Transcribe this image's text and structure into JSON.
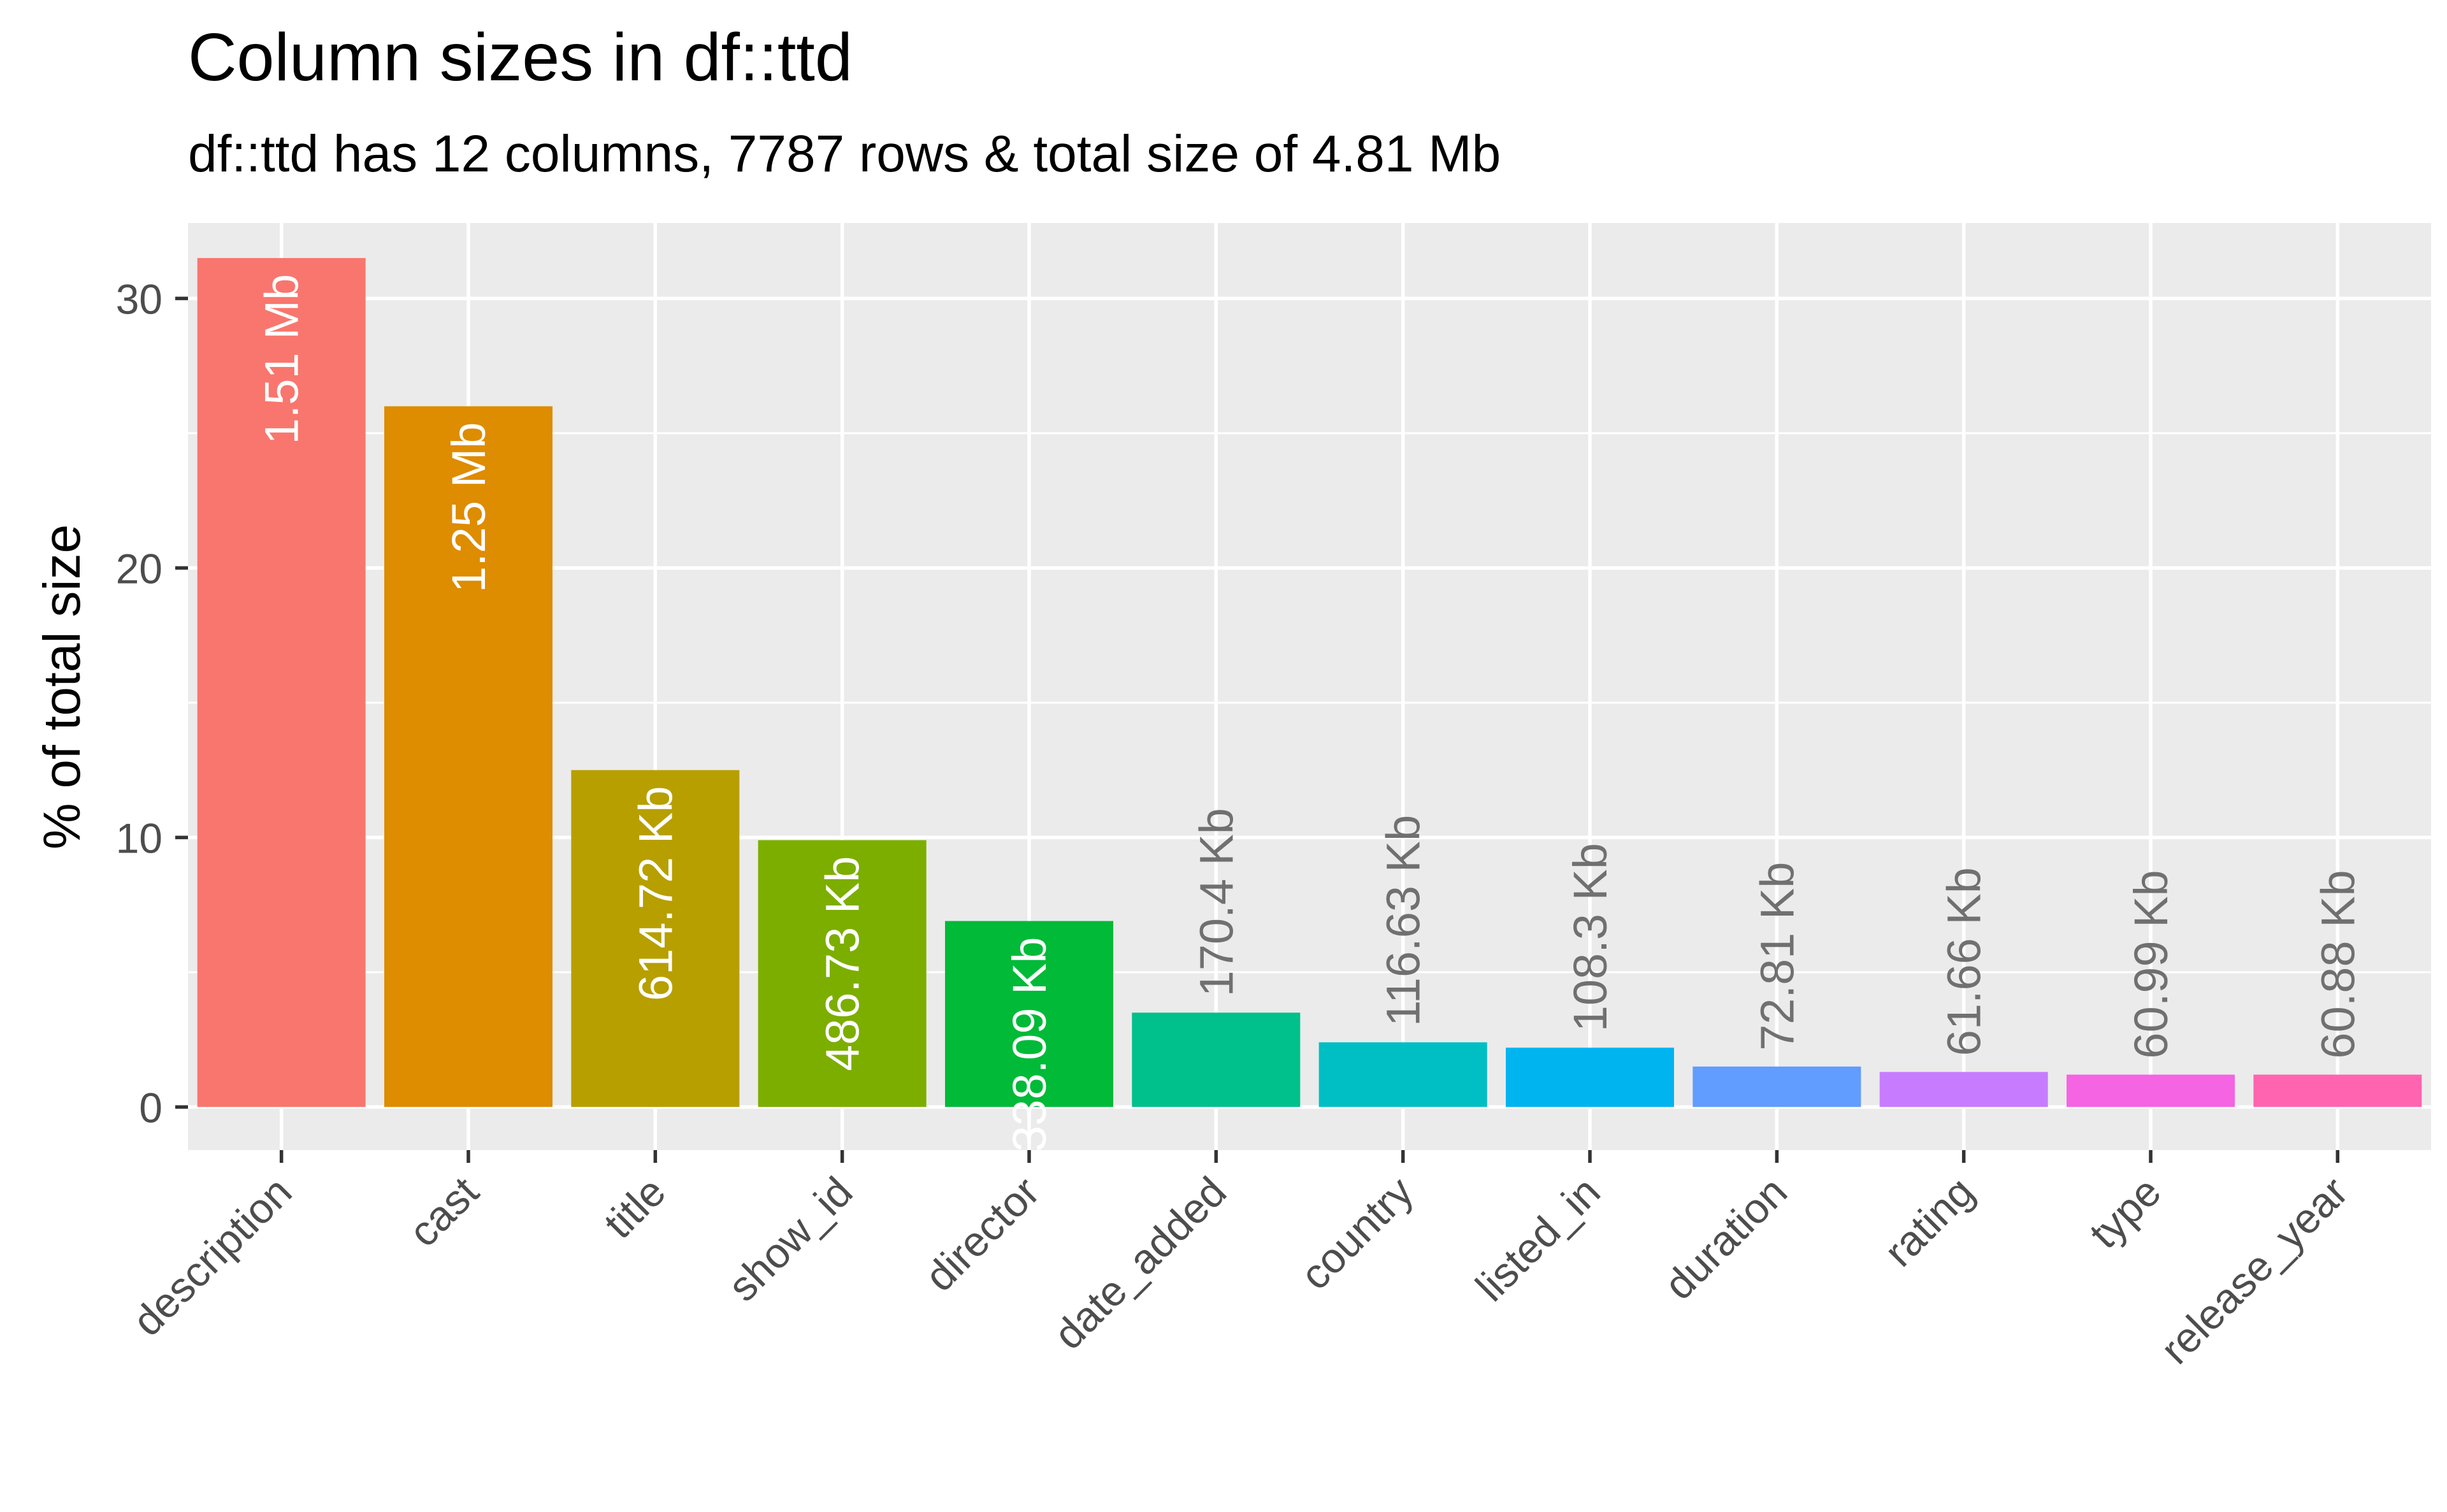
{
  "chart_data": {
    "type": "bar",
    "title": "Column sizes in df::ttd",
    "subtitle": "df::ttd has 12 columns, 7787 rows & total size of 4.81 Mb",
    "xlabel": "",
    "ylabel": "% of total size",
    "ylim": [
      -1.6,
      32.8
    ],
    "yticks": [
      0,
      10,
      20,
      30
    ],
    "grid": true,
    "legend": "none",
    "categories": [
      "description",
      "cast",
      "title",
      "show_id",
      "director",
      "date_added",
      "country",
      "listed_in",
      "duration",
      "rating",
      "type",
      "release_year"
    ],
    "values": [
      31.5,
      26.0,
      12.5,
      9.9,
      6.9,
      3.5,
      2.4,
      2.2,
      1.5,
      1.3,
      1.2,
      1.2
    ],
    "labels": [
      "1.51 Mb",
      "1.25 Mb",
      "614.72 Kb",
      "486.73 Kb",
      "338.09 Kb",
      "170.4 Kb",
      "116.63 Kb",
      "108.3 Kb",
      "72.81 Kb",
      "61.66 Kb",
      "60.99 Kb",
      "60.88 Kb"
    ],
    "colors": [
      "#F8766D",
      "#DE8C00",
      "#B79F00",
      "#7CAE00",
      "#00BA38",
      "#00C08B",
      "#00BFC4",
      "#00B4F0",
      "#619CFF",
      "#C77CFF",
      "#F564E3",
      "#FF64B0"
    ]
  }
}
